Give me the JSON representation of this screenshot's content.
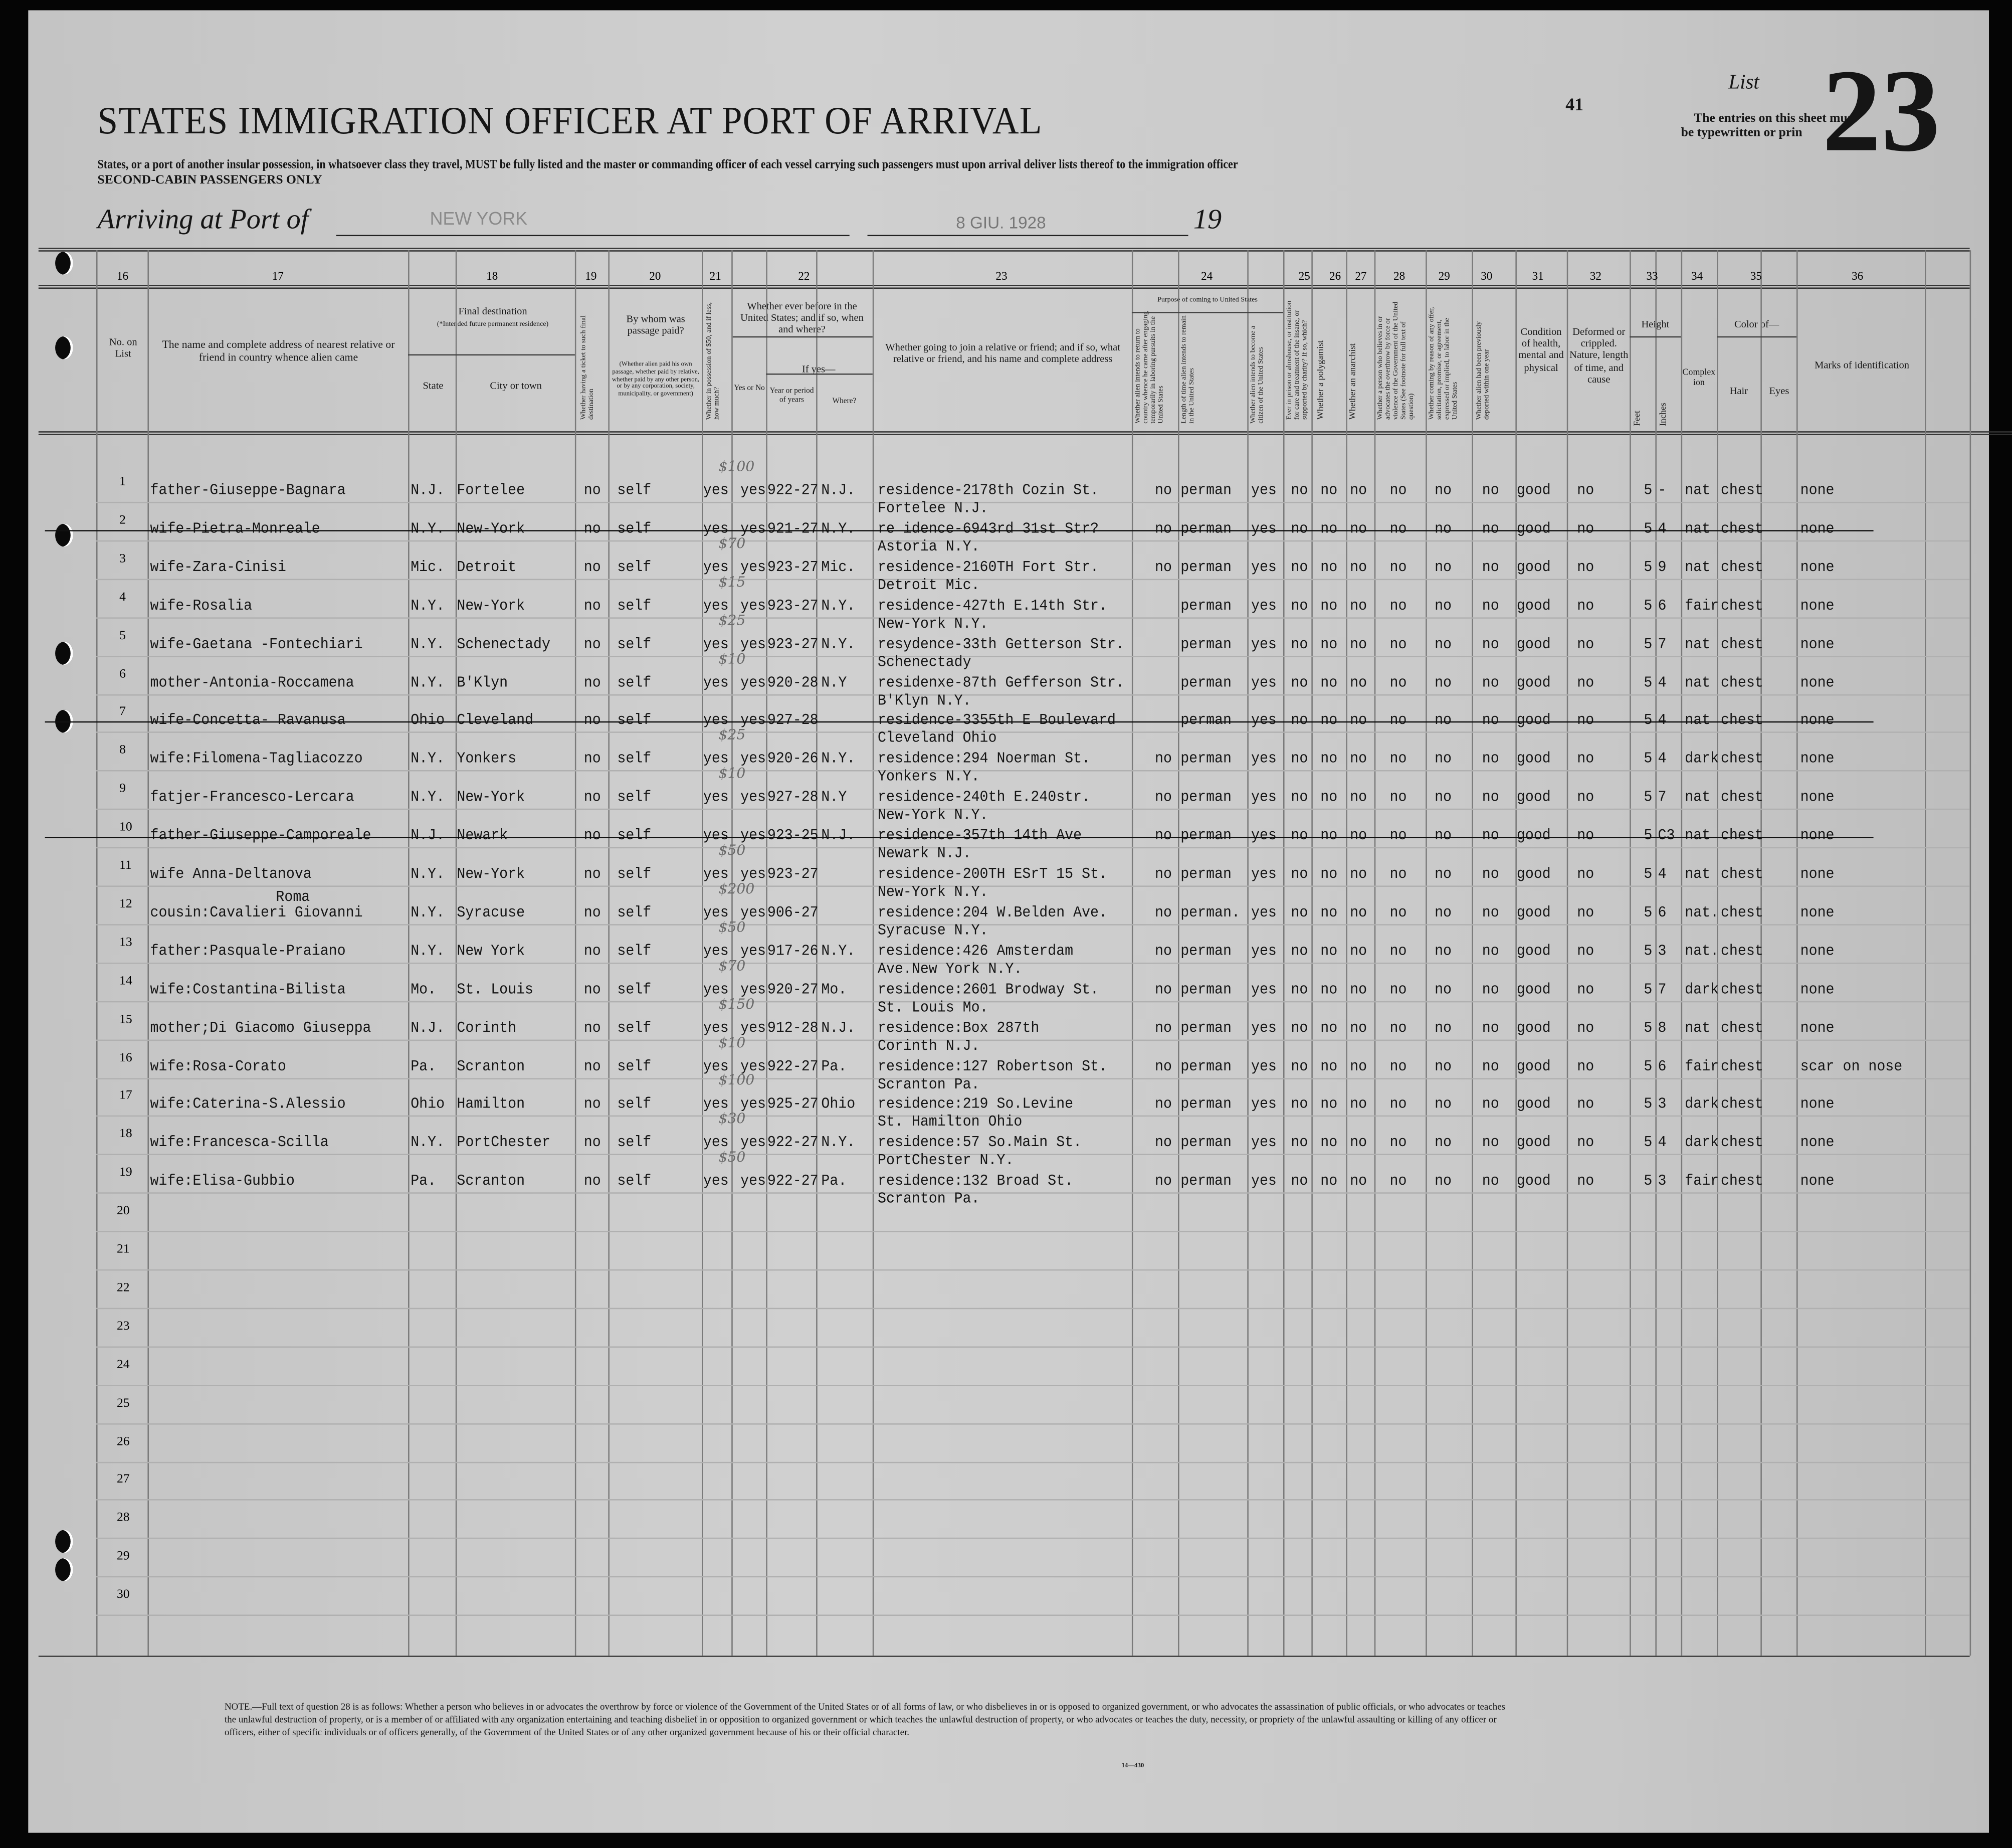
{
  "header": {
    "title": "STATES IMMIGRATION OFFICER AT PORT OF ARRIVAL",
    "instructions": "States, or a port of another insular possession, in whatsoever class they travel, MUST be fully listed and the master or commanding officer of each vessel carrying such passengers must upon arrival deliver lists thereof to the immigration officer",
    "class_note": "SECOND-CABIN PASSENGERS ONLY",
    "arriving_label": "Arriving at Port of",
    "port": "NEW YORK",
    "date_stamp": "8 GIU. 1928",
    "year_prefix": "19",
    "page_number": "41",
    "list_label": "List",
    "list_number": "23",
    "entries_note_1": "The entries on this sheet must",
    "entries_note_2": "be typewritten or prin"
  },
  "columns": {
    "numbers": [
      "16",
      "17",
      "18",
      "19",
      "20",
      "21",
      "22",
      "23",
      "24",
      "25",
      "26",
      "27",
      "28",
      "29",
      "30",
      "31",
      "32",
      "33",
      "34",
      "35",
      "36"
    ],
    "c16": "No. on List",
    "c17": "The name and complete address of nearest relative or friend in country whence alien came",
    "c18": "Final destination",
    "c18_note": "(*Intended future permanent residence)",
    "c18_state": "State",
    "c18_city": "City or town",
    "c19": "Whether having a ticket to such final destination",
    "c20": "By whom was passage paid?",
    "c20_note": "(Whether alien paid his own passage, whether paid by relative, whether paid by any other person, or by any corporation, society, municipality, or government)",
    "c21": "Whether in possession of $50, and if less, how much?",
    "c22": "Whether ever before in the United States; and if so, when and where?",
    "c22_yesno": "Yes or No",
    "c22_ifyes": "If yes—",
    "c22_years": "Year or period of years",
    "c22_where": "Where?",
    "c23": "Whether going to join a relative or friend; and if so, what relative or friend, and his name and complete address",
    "c24": "Purpose of coming to United States",
    "c24_a": "Whether alien intends to return to country whence he came after engaging temporarily in laboring pursuits in the United States",
    "c24_b": "Length of time alien intends to remain in the United States",
    "c24_c": "Whether alien intends to become a citizen of the United States",
    "c25": "Ever in prison or almshouse, or institution for care and treatment of the insane, or supported by charity? If so, which?",
    "c26": "Whether a polygamist",
    "c27": "Whether an anarchist",
    "c28": "Whether a person who believes in or advocates the overthrow by force or violence of the Government of the United States (See footnote for full text of question)",
    "c29": "Whether coming by reason of any offer, solicitation, promise, or agreement, expressed or implied, to labor in the United States",
    "c30": "Whether alien had been previously deported within one year",
    "c31": "Condition of health, mental and physical",
    "c32": "Deformed or crippled. Nature, length of time, and cause",
    "c33": "Height",
    "c33_feet": "Feet",
    "c33_inches": "Inches",
    "c34": "Complexion",
    "c35": "Color of—",
    "c35_hair": "Hair",
    "c35_eyes": "Eyes",
    "c36": "Marks of identification"
  },
  "rows": [
    {
      "no": "1",
      "relative": "father-Giuseppe-Bagnara",
      "relative2": "",
      "state": "N.J.",
      "city": "Fortelee",
      "ticket": "no",
      "paid": "self",
      "money_note": "$100",
      "money": "yes",
      "before": "yes",
      "years": "922-27",
      "where": "N.J.",
      "join1": "residence-2178th Cozin St.",
      "join2": "Fortelee N.J.",
      "return": "no",
      "length": "perman",
      "citizen": "yes",
      "c25": "no",
      "c26": "no",
      "c27": "no",
      "c28": "no",
      "c29": "no",
      "c30": "no",
      "health": "good",
      "deformed": "no",
      "feet": "5",
      "inches": "-",
      "complexion": "nat",
      "hair": "chest",
      "eyes": "",
      "marks": "none",
      "struck": false
    },
    {
      "no": "2",
      "relative": "wife-Pietra-Monreale",
      "relative2": "",
      "state": "N.Y.",
      "city": "New-York",
      "ticket": "no",
      "paid": "self",
      "money_note": "",
      "money": "yes",
      "before": "yes",
      "years": "921-27",
      "where": "N.Y.",
      "join1": "re idence-6943rd 31st Str?",
      "join2": "Astoria N.Y.",
      "return": "no",
      "length": "perman",
      "citizen": "yes",
      "c25": "no",
      "c26": "no",
      "c27": "no",
      "c28": "no",
      "c29": "no",
      "c30": "no",
      "health": "good",
      "deformed": "no",
      "feet": "5",
      "inches": "4",
      "complexion": "nat",
      "hair": "chest",
      "eyes": "",
      "marks": "none",
      "struck": true
    },
    {
      "no": "3",
      "relative": "wife-Zara-Cinisi",
      "relative2": "",
      "state": "Mic.",
      "city": "Detroit",
      "ticket": "no",
      "paid": "self",
      "money_note": "$70",
      "money": "yes",
      "before": "yes",
      "years": "923-27",
      "where": "Mic.",
      "join1": "residence-2160TH Fort Str.",
      "join2": "Detroit Mic.",
      "return": "no",
      "length": "perman",
      "citizen": "yes",
      "c25": "no",
      "c26": "no",
      "c27": "no",
      "c28": "no",
      "c29": "no",
      "c30": "no",
      "health": "good",
      "deformed": "no",
      "feet": "5",
      "inches": "9",
      "complexion": "nat",
      "hair": "chest",
      "eyes": "",
      "marks": "none",
      "struck": false
    },
    {
      "no": "4",
      "relative": "wife-Rosalia",
      "relative2": "",
      "state": "N.Y.",
      "city": "New-York",
      "ticket": "no",
      "paid": "self",
      "money_note": "$15",
      "money": "yes",
      "before": "yes",
      "years": "923-27",
      "where": "N.Y.",
      "join1": "residence-427th E.14th Str.",
      "join2": "New-York N.Y.",
      "return": "",
      "length": "perman",
      "citizen": "yes",
      "c25": "no",
      "c26": "no",
      "c27": "no",
      "c28": "no",
      "c29": "no",
      "c30": "no",
      "health": "good",
      "deformed": "no",
      "feet": "5",
      "inches": "6",
      "complexion": "fair",
      "hair": "chest",
      "eyes": "",
      "marks": "none",
      "struck": false
    },
    {
      "no": "5",
      "relative": "wife-Gaetana -Fontechiari",
      "relative2": "",
      "state": "N.Y.",
      "city": "Schenectady",
      "ticket": "no",
      "paid": "self",
      "money_note": "$25",
      "money": "yes",
      "before": "yes",
      "years": "923-27",
      "where": "N.Y.",
      "join1": "resydence-33th Getterson Str.",
      "join2": "Schenectady",
      "return": "",
      "length": "perman",
      "citizen": "yes",
      "c25": "no",
      "c26": "no",
      "c27": "no",
      "c28": "no",
      "c29": "no",
      "c30": "no",
      "health": "good",
      "deformed": "no",
      "feet": "5",
      "inches": "7",
      "complexion": "nat",
      "hair": "chest",
      "eyes": "",
      "marks": "none",
      "struck": false
    },
    {
      "no": "6",
      "relative": "mother-Antonia-Roccamena",
      "relative2": "",
      "state": "N.Y.",
      "city": "B'Klyn",
      "ticket": "no",
      "paid": "self",
      "money_note": "$10",
      "money": "yes",
      "before": "yes",
      "years": "920-28",
      "where": "N.Y",
      "join1": "residenxe-87th Gefferson Str.",
      "join2": "B'Klyn N.Y.",
      "return": "",
      "length": "perman",
      "citizen": "yes",
      "c25": "no",
      "c26": "no",
      "c27": "no",
      "c28": "no",
      "c29": "no",
      "c30": "no",
      "health": "good",
      "deformed": "no",
      "feet": "5",
      "inches": "4",
      "complexion": "nat",
      "hair": "chest",
      "eyes": "",
      "marks": "none",
      "struck": false
    },
    {
      "no": "7",
      "relative": "wife-Concetta- Ravanusa",
      "relative2": "",
      "state": "Ohio",
      "city": "Cleveland",
      "ticket": "no",
      "paid": "self",
      "money_note": "",
      "money": "yes",
      "before": "yes",
      "years": "927-28",
      "where": "",
      "join1": "residence-3355th E Boulevard",
      "join2": "Cleveland Ohio",
      "return": "",
      "length": "perman",
      "citizen": "yes",
      "c25": "no",
      "c26": "no",
      "c27": "no",
      "c28": "no",
      "c29": "no",
      "c30": "no",
      "health": "good",
      "deformed": "no",
      "feet": "5",
      "inches": "4",
      "complexion": "nat",
      "hair": "chest",
      "eyes": "",
      "marks": "none",
      "struck": true
    },
    {
      "no": "8",
      "relative": "wife:Filomena-Tagliacozzo",
      "relative2": "",
      "state": "N.Y.",
      "city": "Yonkers",
      "ticket": "no",
      "paid": "self",
      "money_note": "$25",
      "money": "yes",
      "before": "yes",
      "years": "920-26",
      "where": "N.Y.",
      "join1": "residence:294 Noerman St.",
      "join2": "Yonkers N.Y.",
      "return": "no",
      "length": "perman",
      "citizen": "yes",
      "c25": "no",
      "c26": "no",
      "c27": "no",
      "c28": "no",
      "c29": "no",
      "c30": "no",
      "health": "good",
      "deformed": "no",
      "feet": "5",
      "inches": "4",
      "complexion": "dark",
      "hair": "chest",
      "eyes": "",
      "marks": "none",
      "struck": false
    },
    {
      "no": "9",
      "relative": "fatjer-Francesco-Lercara",
      "relative2": "",
      "state": "N.Y.",
      "city": "New-York",
      "ticket": "no",
      "paid": "self",
      "money_note": "$10",
      "money": "yes",
      "before": "yes",
      "years": "927-28",
      "where": "N.Y",
      "join1": "residence-240th E.240str.",
      "join2": "New-York N.Y.",
      "return": "no",
      "length": "perman",
      "citizen": "yes",
      "c25": "no",
      "c26": "no",
      "c27": "no",
      "c28": "no",
      "c29": "no",
      "c30": "no",
      "health": "good",
      "deformed": "no",
      "feet": "5",
      "inches": "7",
      "complexion": "nat",
      "hair": "chest",
      "eyes": "",
      "marks": "none",
      "struck": false
    },
    {
      "no": "10",
      "relative": "father-Giuseppe-Camporeale",
      "relative2": "",
      "state": "N.J.",
      "city": "Newark",
      "ticket": "no",
      "paid": "self",
      "money_note": "",
      "money": "yes",
      "before": "yes",
      "years": "923-25",
      "where": "N.J.",
      "join1": "residence-357th 14th Ave",
      "join2": "Newark N.J.",
      "return": "no",
      "length": "perman",
      "citizen": "yes",
      "c25": "no",
      "c26": "no",
      "c27": "no",
      "c28": "no",
      "c29": "no",
      "c30": "no",
      "health": "good",
      "deformed": "no",
      "feet": "5",
      "inches": "C3",
      "complexion": "nat",
      "hair": "chest",
      "eyes": "",
      "marks": "none",
      "struck": true
    },
    {
      "no": "11",
      "relative": "wife Anna-Deltanova",
      "relative2": "",
      "state": "N.Y.",
      "city": "New-York",
      "ticket": "no",
      "paid": "self",
      "money_note": "$50",
      "money": "yes",
      "before": "yes",
      "years": "923-27",
      "where": "",
      "join1": "residence-200TH ESrT 15 St.",
      "join2": "New-York N.Y.",
      "return": "no",
      "length": "perman",
      "citizen": "yes",
      "c25": "no",
      "c26": "no",
      "c27": "no",
      "c28": "no",
      "c29": "no",
      "c30": "no",
      "health": "good",
      "deformed": "no",
      "feet": "5",
      "inches": "4",
      "complexion": "nat",
      "hair": "chest",
      "eyes": "",
      "marks": "none",
      "struck": false
    },
    {
      "no": "12",
      "relative": "cousin:Cavalieri Giovanni",
      "relative2": "Roma",
      "state": "N.Y.",
      "city": "Syracuse",
      "ticket": "no",
      "paid": "self",
      "money_note": "$200",
      "money": "yes",
      "before": "yes",
      "years": "906-27",
      "where": "",
      "join1": "residence:204 W.Belden Ave.",
      "join2": "Syracuse N.Y.",
      "return": "no",
      "length": "perman.",
      "citizen": "yes",
      "c25": "no",
      "c26": "no",
      "c27": "no",
      "c28": "no",
      "c29": "no",
      "c30": "no",
      "health": "good",
      "deformed": "no",
      "feet": "5",
      "inches": "6",
      "complexion": "nat.",
      "hair": "chest",
      "eyes": "",
      "marks": "none",
      "struck": false
    },
    {
      "no": "13",
      "relative": "father:Pasquale-Praiano",
      "relative2": "",
      "state": "N.Y.",
      "city": "New York",
      "ticket": "no",
      "paid": "self",
      "money_note": "$50",
      "money": "yes",
      "before": "yes",
      "years": "917-26",
      "where": "N.Y.",
      "join1": "residence:426 Amsterdam",
      "join2": "Ave.New York N.Y.",
      "return": "no",
      "length": "perman",
      "citizen": "yes",
      "c25": "no",
      "c26": "no",
      "c27": "no",
      "c28": "no",
      "c29": "no",
      "c30": "no",
      "health": "good",
      "deformed": "no",
      "feet": "5",
      "inches": "3",
      "complexion": "nat.",
      "hair": "chest",
      "eyes": "",
      "marks": "none",
      "struck": false
    },
    {
      "no": "14",
      "relative": "wife:Costantina-Bilista",
      "relative2": "",
      "state": "Mo.",
      "city": "St. Louis",
      "ticket": "no",
      "paid": "self",
      "money_note": "$70",
      "money": "yes",
      "before": "yes",
      "years": "920-27",
      "where": "Mo.",
      "join1": "residence:2601 Brodway St.",
      "join2": "St. Louis Mo.",
      "return": "no",
      "length": "perman",
      "citizen": "yes",
      "c25": "no",
      "c26": "no",
      "c27": "no",
      "c28": "no",
      "c29": "no",
      "c30": "no",
      "health": "good",
      "deformed": "no",
      "feet": "5",
      "inches": "7",
      "complexion": "dark",
      "hair": "chest",
      "eyes": "",
      "marks": "none",
      "struck": false
    },
    {
      "no": "15",
      "relative": "mother;Di Giacomo Giuseppa",
      "relative2": "",
      "state": "N.J.",
      "city": "Corinth",
      "ticket": "no",
      "paid": "self",
      "money_note": "$150",
      "money": "yes",
      "before": "yes",
      "years": "912-28",
      "where": "N.J.",
      "join1": "residence:Box 287th",
      "join2": "Corinth N.J.",
      "return": "no",
      "length": "perman",
      "citizen": "yes",
      "c25": "no",
      "c26": "no",
      "c27": "no",
      "c28": "no",
      "c29": "no",
      "c30": "no",
      "health": "good",
      "deformed": "no",
      "feet": "5",
      "inches": "8",
      "complexion": "nat",
      "hair": "chest",
      "eyes": "",
      "marks": "none",
      "struck": false
    },
    {
      "no": "16",
      "relative": "wife:Rosa-Corato",
      "relative2": "",
      "state": "Pa.",
      "city": "Scranton",
      "ticket": "no",
      "paid": "self",
      "money_note": "$10",
      "money": "yes",
      "before": "yes",
      "years": "922-27",
      "where": "Pa.",
      "join1": "residence:127 Robertson St.",
      "join2": "Scranton Pa.",
      "return": "no",
      "length": "perman",
      "citizen": "yes",
      "c25": "no",
      "c26": "no",
      "c27": "no",
      "c28": "no",
      "c29": "no",
      "c30": "no",
      "health": "good",
      "deformed": "no",
      "feet": "5",
      "inches": "6",
      "complexion": "fair",
      "hair": "chest",
      "eyes": "",
      "marks": "scar on nose",
      "struck": false
    },
    {
      "no": "17",
      "relative": "wife:Caterina-S.Alessio",
      "relative2": "",
      "state": "Ohio",
      "city": "Hamilton",
      "ticket": "no",
      "paid": "self",
      "money_note": "$100",
      "money": "yes",
      "before": "yes",
      "years": "925-27",
      "where": "Ohio",
      "join1": "residence:219 So.Levine",
      "join2": "St. Hamilton Ohio",
      "return": "no",
      "length": "perman",
      "citizen": "yes",
      "c25": "no",
      "c26": "no",
      "c27": "no",
      "c28": "no",
      "c29": "no",
      "c30": "no",
      "health": "good",
      "deformed": "no",
      "feet": "5",
      "inches": "3",
      "complexion": "dark",
      "hair": "chest",
      "eyes": "",
      "marks": "none",
      "struck": false
    },
    {
      "no": "18",
      "relative": "wife:Francesca-Scilla",
      "relative2": "",
      "state": "N.Y.",
      "city": "PortChester",
      "ticket": "no",
      "paid": "self",
      "money_note": "$30",
      "money": "yes",
      "before": "yes",
      "years": "922-27",
      "where": "N.Y.",
      "join1": "residence:57 So.Main St.",
      "join2": "PortChester N.Y.",
      "return": "no",
      "length": "perman",
      "citizen": "yes",
      "c25": "no",
      "c26": "no",
      "c27": "no",
      "c28": "no",
      "c29": "no",
      "c30": "no",
      "health": "good",
      "deformed": "no",
      "feet": "5",
      "inches": "4",
      "complexion": "dark",
      "hair": "chest",
      "eyes": "",
      "marks": "none",
      "struck": false
    },
    {
      "no": "19",
      "relative": "wife:Elisa-Gubbio",
      "relative2": "",
      "state": "Pa.",
      "city": "Scranton",
      "ticket": "no",
      "paid": "self",
      "money_note": "$50",
      "money": "yes",
      "before": "yes",
      "years": "922-27",
      "where": "Pa.",
      "join1": "residence:132 Broad St.",
      "join2": "Scranton Pa.",
      "return": "no",
      "length": "perman",
      "citizen": "yes",
      "c25": "no",
      "c26": "no",
      "c27": "no",
      "c28": "no",
      "c29": "no",
      "c30": "no",
      "health": "good",
      "deformed": "no",
      "feet": "5",
      "inches": "3",
      "complexion": "fair",
      "hair": "chest",
      "eyes": "",
      "marks": "none",
      "struck": false
    }
  ],
  "empty_rows": [
    "20",
    "21",
    "22",
    "23",
    "24",
    "25",
    "26",
    "27",
    "28",
    "29",
    "30"
  ],
  "footnote": {
    "text": "NOTE.—Full text of question 28 is as follows: Whether a person who believes in or advocates the overthrow by force or violence of the Government of the United States or of all forms of law, or who disbelieves in or is opposed to organized government, or who advocates the assassination of public officials, or who advocates or teaches the unlawful destruction of property, or is a member of or affiliated with any organization entertaining and teaching disbelief in or opposition to organized government or which teaches the unlawful destruction of property, or who advocates or teaches the duty, necessity, or propriety of the unlawful assaulting or killing of any officer or officers, either of specific individuals or of officers generally, of the Government of the United States or of any other organized government because of his or their official character.",
    "form_number": "14—430"
  },
  "colors": {
    "paper": "#c8c8c8",
    "ink": "#151515",
    "border": "#050505",
    "pencil": "#6a6a6a"
  }
}
